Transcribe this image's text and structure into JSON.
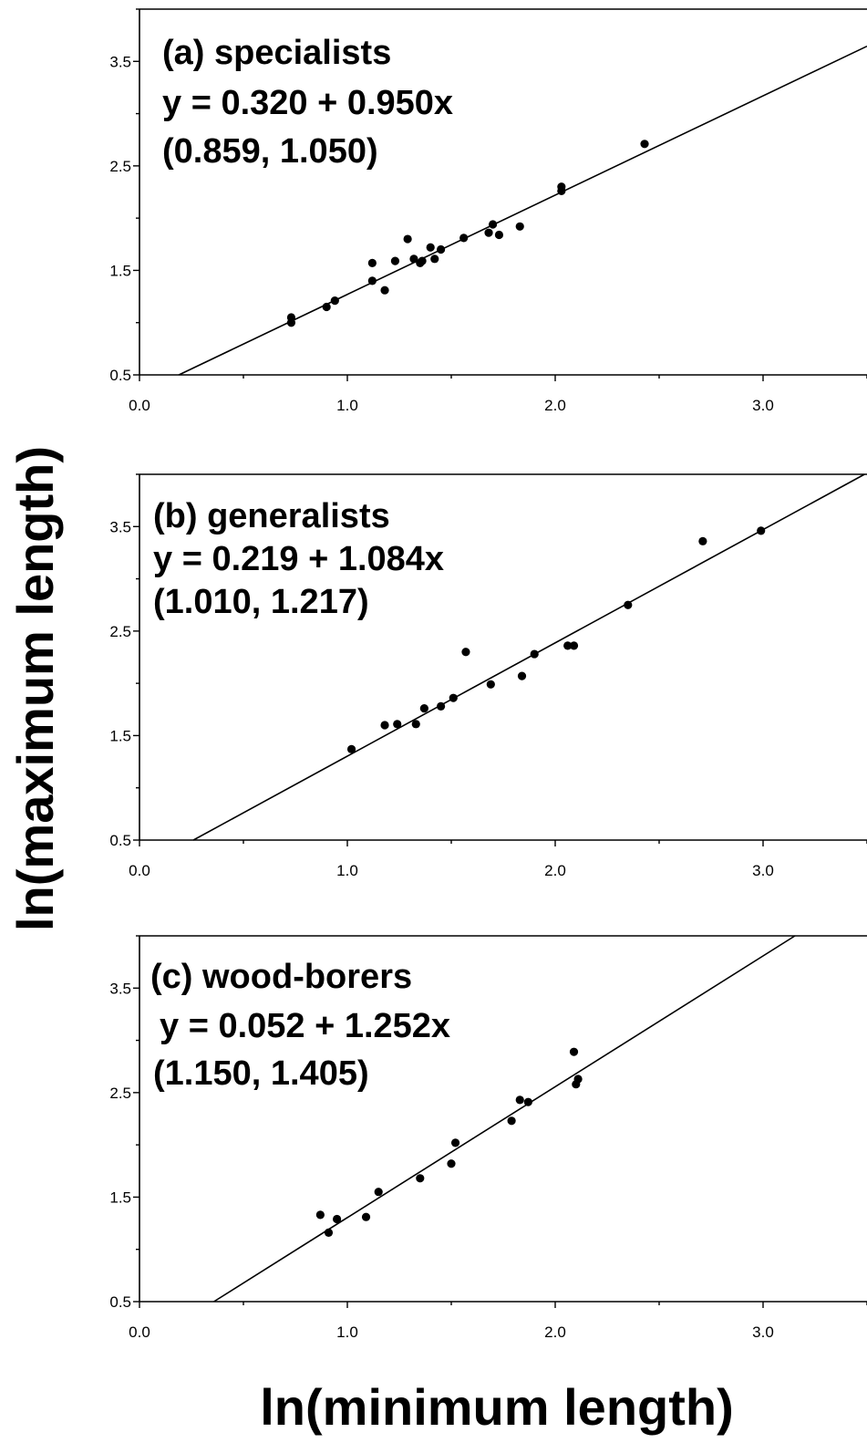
{
  "figure": {
    "ylabel": "ln(maximum length)",
    "xlabel": "ln(minimum length)"
  },
  "chart_data": [
    {
      "type": "scatter",
      "title": "(a) specialists",
      "equation": "y = 0.320 + 0.950x",
      "interval": "(0.859, 1.050)",
      "xlim": [
        0.0,
        3.5
      ],
      "ylim": [
        0.5,
        4.0
      ],
      "xticks": [
        0.0,
        1.0,
        2.0,
        3.0
      ],
      "xtick_labels": [
        "0.0",
        "1.0",
        "2.0",
        "3.0"
      ],
      "yticks": [
        0.5,
        1.5,
        2.5,
        3.5
      ],
      "ytick_labels": [
        "0.5",
        "1.5",
        "2.5",
        "3.5"
      ],
      "fit": {
        "intercept": 0.32,
        "slope": 0.95
      },
      "points": [
        [
          0.73,
          1.05
        ],
        [
          0.73,
          1.0
        ],
        [
          0.9,
          1.15
        ],
        [
          0.94,
          1.21
        ],
        [
          1.12,
          1.4
        ],
        [
          1.12,
          1.57
        ],
        [
          1.18,
          1.31
        ],
        [
          1.23,
          1.59
        ],
        [
          1.29,
          1.8
        ],
        [
          1.32,
          1.61
        ],
        [
          1.35,
          1.57
        ],
        [
          1.36,
          1.59
        ],
        [
          1.4,
          1.72
        ],
        [
          1.42,
          1.61
        ],
        [
          1.45,
          1.7
        ],
        [
          1.56,
          1.81
        ],
        [
          1.68,
          1.86
        ],
        [
          1.7,
          1.94
        ],
        [
          1.73,
          1.84
        ],
        [
          1.83,
          1.92
        ],
        [
          2.03,
          2.26
        ],
        [
          2.03,
          2.3
        ],
        [
          2.43,
          2.71
        ]
      ]
    },
    {
      "type": "scatter",
      "title": "(b) generalists",
      "equation": "y = 0.219 + 1.084x",
      "interval": "(1.010, 1.217)",
      "xlim": [
        0.0,
        3.5
      ],
      "ylim": [
        0.5,
        4.0
      ],
      "xticks": [
        0.0,
        1.0,
        2.0,
        3.0
      ],
      "xtick_labels": [
        "0.0",
        "1.0",
        "2.0",
        "3.0"
      ],
      "yticks": [
        0.5,
        1.5,
        2.5,
        3.5
      ],
      "ytick_labels": [
        "0.5",
        "1.5",
        "2.5",
        "3.5"
      ],
      "fit": {
        "intercept": 0.219,
        "slope": 1.084
      },
      "points": [
        [
          1.02,
          1.37
        ],
        [
          1.18,
          1.6
        ],
        [
          1.24,
          1.61
        ],
        [
          1.33,
          1.61
        ],
        [
          1.37,
          1.76
        ],
        [
          1.45,
          1.78
        ],
        [
          1.51,
          1.86
        ],
        [
          1.57,
          2.3
        ],
        [
          1.69,
          1.99
        ],
        [
          1.84,
          2.07
        ],
        [
          1.9,
          2.28
        ],
        [
          2.06,
          2.36
        ],
        [
          2.09,
          2.36
        ],
        [
          2.35,
          2.75
        ],
        [
          2.71,
          3.36
        ],
        [
          2.99,
          3.46
        ]
      ]
    },
    {
      "type": "scatter",
      "title": "(c) wood-borers",
      "equation": "y = 0.052 + 1.252x",
      "interval": "(1.150, 1.405)",
      "xlim": [
        0.0,
        3.5
      ],
      "ylim": [
        0.5,
        4.0
      ],
      "xticks": [
        0.0,
        1.0,
        2.0,
        3.0
      ],
      "xtick_labels": [
        "0.0",
        "1.0",
        "2.0",
        "3.0"
      ],
      "yticks": [
        0.5,
        1.5,
        2.5,
        3.5
      ],
      "ytick_labels": [
        "0.5",
        "1.5",
        "2.5",
        "3.5"
      ],
      "fit": {
        "intercept": 0.052,
        "slope": 1.252
      },
      "points": [
        [
          0.87,
          1.33
        ],
        [
          0.91,
          1.16
        ],
        [
          0.95,
          1.29
        ],
        [
          1.09,
          1.31
        ],
        [
          1.15,
          1.55
        ],
        [
          1.35,
          1.68
        ],
        [
          1.5,
          1.82
        ],
        [
          1.52,
          2.02
        ],
        [
          1.79,
          2.23
        ],
        [
          1.83,
          2.43
        ],
        [
          1.87,
          2.41
        ],
        [
          2.09,
          2.89
        ],
        [
          2.1,
          2.58
        ],
        [
          2.11,
          2.63
        ]
      ]
    }
  ]
}
